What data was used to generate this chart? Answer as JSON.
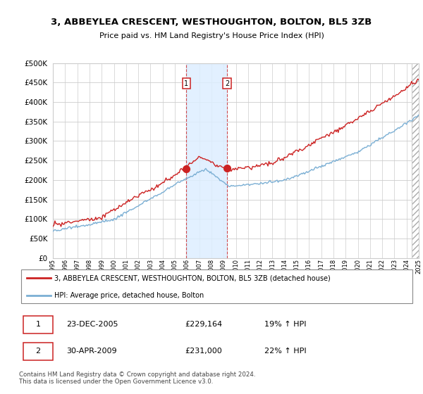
{
  "title": "3, ABBEYLEA CRESCENT, WESTHOUGHTON, BOLTON, BL5 3ZB",
  "subtitle": "Price paid vs. HM Land Registry's House Price Index (HPI)",
  "legend_line1": "3, ABBEYLEA CRESCENT, WESTHOUGHTON, BOLTON, BL5 3ZB (detached house)",
  "legend_line2": "HPI: Average price, detached house, Bolton",
  "transaction1_date": "23-DEC-2005",
  "transaction1_price": "£229,164",
  "transaction1_hpi": "19% ↑ HPI",
  "transaction1_year": 2005.95,
  "transaction1_value": 229164,
  "transaction2_date": "30-APR-2009",
  "transaction2_price": "£231,000",
  "transaction2_hpi": "22% ↑ HPI",
  "transaction2_year": 2009.29,
  "transaction2_value": 231000,
  "footer": "Contains HM Land Registry data © Crown copyright and database right 2024.\nThis data is licensed under the Open Government Licence v3.0.",
  "hpi_color": "#7bafd4",
  "price_color": "#cc2222",
  "marker_box_color": "#cc2222",
  "background_color": "#ffffff",
  "grid_color": "#cccccc",
  "shading_color": "#ddeeff",
  "ylim": [
    0,
    500000
  ],
  "yticks": [
    0,
    50000,
    100000,
    150000,
    200000,
    250000,
    300000,
    350000,
    400000,
    450000,
    500000
  ],
  "x_start_year": 1995,
  "x_end_year": 2025
}
